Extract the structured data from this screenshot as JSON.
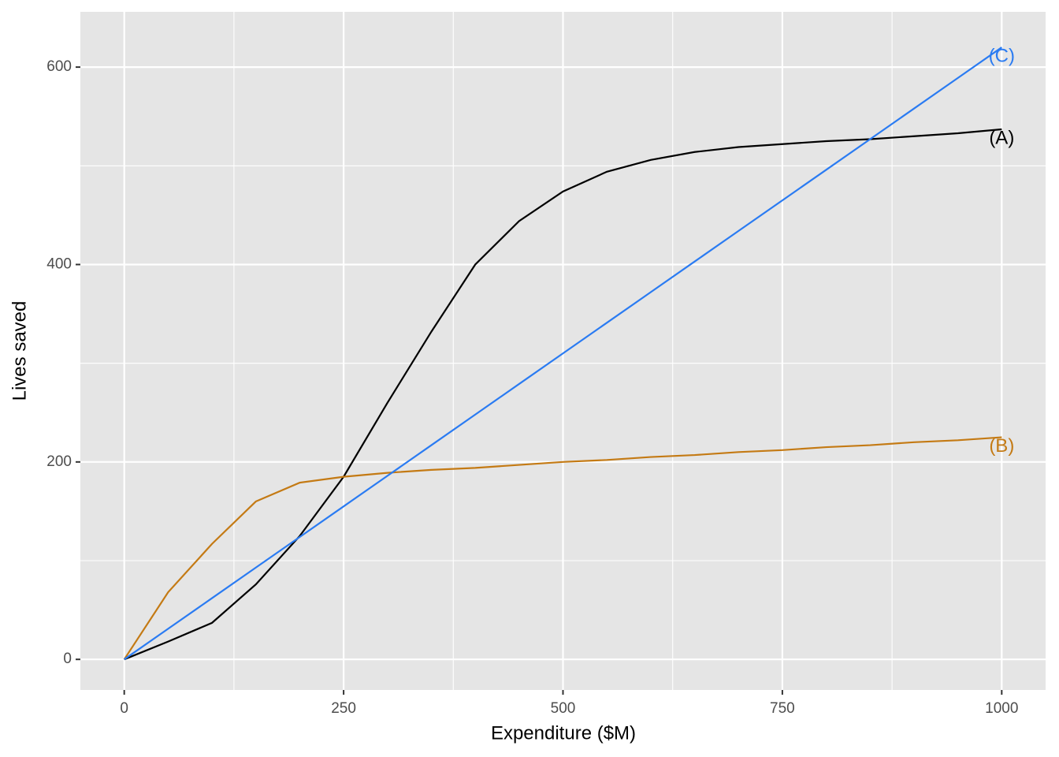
{
  "chart_data": {
    "type": "line",
    "xlabel": "Expenditure ($M)",
    "ylabel": "Lives saved",
    "x": [
      0,
      50,
      100,
      150,
      200,
      250,
      300,
      350,
      400,
      450,
      500,
      550,
      600,
      650,
      700,
      750,
      800,
      850,
      900,
      950,
      1000
    ],
    "series": [
      {
        "name": "(A)",
        "color": "#000000",
        "values": [
          0,
          18,
          37,
          76,
          125,
          185,
          260,
          332,
          400,
          444,
          474,
          494,
          506,
          514,
          519,
          522,
          525,
          527,
          530,
          533,
          537
        ]
      },
      {
        "name": "(B)",
        "color": "#c47a14",
        "values": [
          0,
          68,
          117,
          160,
          179,
          185,
          189,
          192,
          194,
          197,
          200,
          202,
          205,
          207,
          210,
          212,
          215,
          217,
          220,
          222,
          225
        ]
      },
      {
        "name": "(C)",
        "color": "#2a7bf2",
        "values": [
          0,
          31,
          62,
          93,
          124,
          155,
          186,
          217,
          248,
          279,
          310,
          341,
          372,
          403,
          434,
          465,
          496,
          527,
          558,
          589,
          620
        ]
      }
    ],
    "xlim": [
      -50,
      1050
    ],
    "ylim": [
      -31,
      656
    ],
    "xticks": [
      0,
      250,
      500,
      750,
      1000
    ],
    "yticks": [
      0,
      200,
      400,
      600
    ],
    "x_minor_ticks": [
      125,
      375,
      625,
      875
    ],
    "y_minor_ticks": [
      100,
      300,
      500
    ],
    "grid": true
  }
}
